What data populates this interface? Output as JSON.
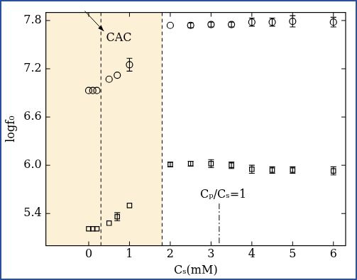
{
  "chart_data": {
    "type": "scatter",
    "x_label": "Cₛ(mM)",
    "y_label": "logf₀",
    "xlim": [
      -1.05,
      6.3
    ],
    "ylim": [
      5.0,
      7.9
    ],
    "xticks": [
      0,
      1,
      2,
      3,
      4,
      5,
      6
    ],
    "yticks": [
      5.4,
      {
        "value": 6,
        "label": "6.0"
      },
      6.6,
      7.2,
      7.8
    ],
    "grid": false,
    "series": [
      {
        "marker": "circle",
        "color": "#000000",
        "x": [
          0,
          0.1,
          0.2,
          0.5,
          0.7,
          1.0,
          2.0,
          2.5,
          3.0,
          3.5,
          4.0,
          4.5,
          5.0,
          6.0
        ],
        "values": [
          6.93,
          6.93,
          6.93,
          7.07,
          7.12,
          7.25,
          7.74,
          7.74,
          7.75,
          7.75,
          7.78,
          7.78,
          7.79,
          7.78
        ],
        "errors": [
          null,
          null,
          null,
          null,
          null,
          0.08,
          null,
          0.03,
          0.03,
          0.03,
          0.05,
          0.05,
          0.07,
          0.06
        ]
      },
      {
        "marker": "square",
        "color": "#000000",
        "x": [
          0,
          0.1,
          0.2,
          0.5,
          0.7,
          1.0,
          2.0,
          2.5,
          3.0,
          3.5,
          4.0,
          4.5,
          5.0,
          6.0
        ],
        "values": [
          5.21,
          5.21,
          5.21,
          5.28,
          5.36,
          5.5,
          6.01,
          6.02,
          6.02,
          6.0,
          5.95,
          5.94,
          5.94,
          5.93
        ],
        "errors": [
          null,
          null,
          null,
          null,
          0.05,
          null,
          0.03,
          0.03,
          0.05,
          0.04,
          0.05,
          0.04,
          0.04,
          0.05
        ]
      }
    ],
    "vlines": [
      {
        "x": 0.3,
        "line_style": "dashed"
      },
      {
        "x": 1.8,
        "line_style": "dashed"
      }
    ],
    "annotations": [
      {
        "text": "CAC",
        "x": 0.74,
        "y": 7.58
      },
      {
        "text": "Cₚ/Cₛ=1",
        "x": 3.3,
        "y": 5.63,
        "line_x": 3.2,
        "line_style": "dashdot"
      }
    ]
  }
}
